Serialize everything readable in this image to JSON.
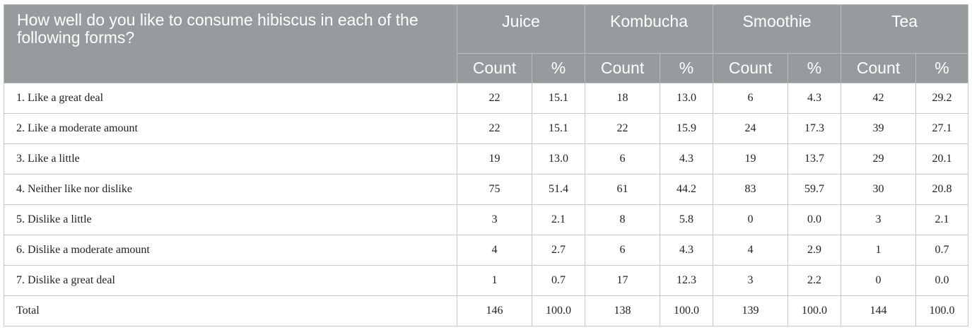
{
  "table": {
    "question": "How well do you like to consume hibiscus in each of the following forms?",
    "forms": [
      "Juice",
      "Kombucha",
      "Smoothie",
      "Tea"
    ],
    "sub_headers": [
      "Count",
      "%"
    ],
    "rows": [
      {
        "label": "1. Like a great deal",
        "values": [
          "22",
          "15.1",
          "18",
          "13.0",
          "6",
          "4.3",
          "42",
          "29.2"
        ]
      },
      {
        "label": "2. Like a moderate amount",
        "values": [
          "22",
          "15.1",
          "22",
          "15.9",
          "24",
          "17.3",
          "39",
          "27.1"
        ]
      },
      {
        "label": "3. Like a little",
        "values": [
          "19",
          "13.0",
          "6",
          "4.3",
          "19",
          "13.7",
          "29",
          "20.1"
        ]
      },
      {
        "label": "4. Neither like nor dislike",
        "values": [
          "75",
          "51.4",
          "61",
          "44.2",
          "83",
          "59.7",
          "30",
          "20.8"
        ]
      },
      {
        "label": "5. Dislike a little",
        "values": [
          "3",
          "2.1",
          "8",
          "5.8",
          "0",
          "0.0",
          "3",
          "2.1"
        ]
      },
      {
        "label": "6. Dislike a moderate amount",
        "values": [
          "4",
          "2.7",
          "6",
          "4.3",
          "4",
          "2.9",
          "1",
          "0.7"
        ]
      },
      {
        "label": "7. Dislike a great deal",
        "values": [
          "1",
          "0.7",
          "17",
          "12.3",
          "3",
          "2.2",
          "0",
          "0.0"
        ]
      },
      {
        "label": "Total",
        "values": [
          "146",
          "100.0",
          "138",
          "100.0",
          "139",
          "100.0",
          "144",
          "100.0"
        ]
      }
    ]
  }
}
